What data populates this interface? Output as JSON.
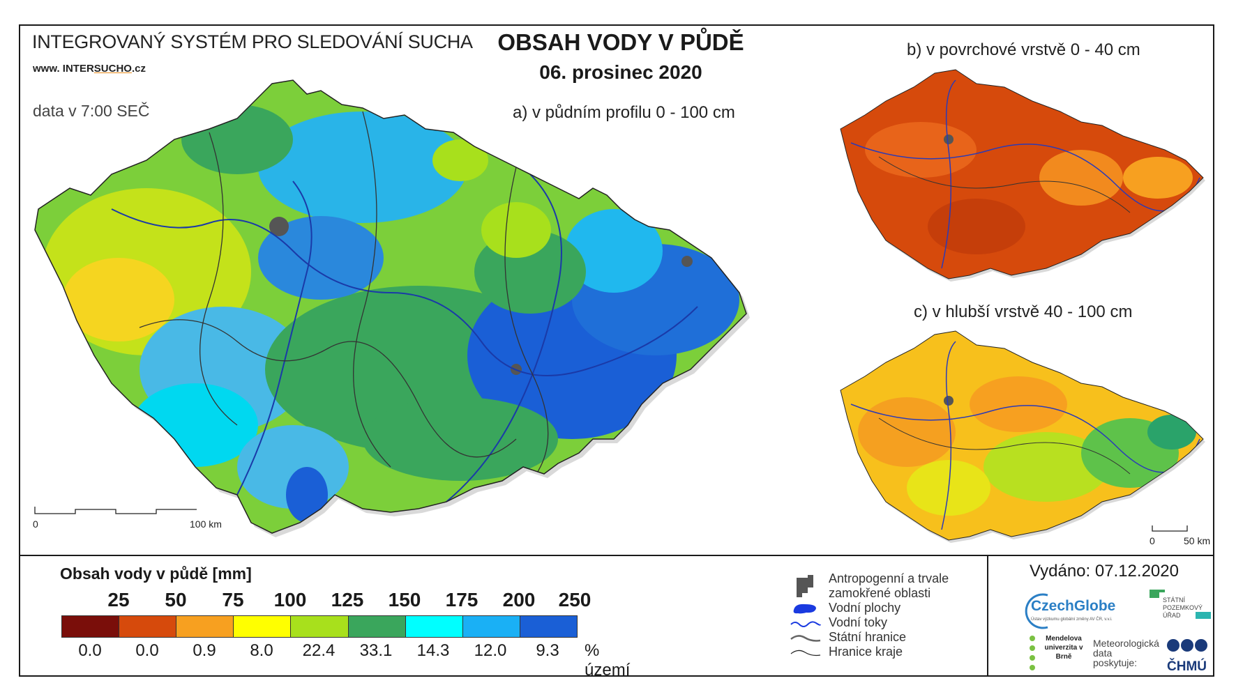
{
  "header": {
    "system_title": "INTEGROVANÝ SYSTÉM PRO SLEDOVÁNÍ SUCHA",
    "url_prefix": "www. INTER",
    "url_highlight": "SUCHO",
    "url_suffix": ".cz",
    "data_time": "data v 7:00 SEČ",
    "title": "OBSAH VODY V PŮDĚ",
    "date": "06. prosinec 2020"
  },
  "maps": {
    "a_label": "a) v půdním profilu 0 - 100 cm",
    "b_label": "b) v povrchové vrstvě 0 - 40 cm",
    "c_label": "c) v hlubší vrstvě 40 - 100 cm",
    "scale_main": [
      "0",
      "100 km"
    ],
    "scale_small": [
      "0",
      "50 km"
    ]
  },
  "legend": {
    "title": "Obsah vody v půdě  [mm]",
    "bounds": [
      "25",
      "50",
      "75",
      "100",
      "125",
      "150",
      "175",
      "200",
      "250"
    ],
    "colors": [
      "#7a0e0a",
      "#d64a0c",
      "#f7a020",
      "#ffff00",
      "#a8e01c",
      "#3aa65c",
      "#00ffff",
      "#1ab0f5",
      "#1a5fd6"
    ],
    "percentages": [
      "0.0",
      "0.0",
      "0.9",
      "8.0",
      "22.4",
      "33.1",
      "14.3",
      "12.0",
      "9.3"
    ],
    "percent_unit": "% území"
  },
  "features": {
    "anthropogenic_1": "Antropogenní a trvale",
    "anthropogenic_2": "zamokřené oblasti",
    "water_bodies": "Vodní plochy",
    "streams": "Vodní toky",
    "state_border": "Státní hranice",
    "region_border": "Hranice kraje"
  },
  "footer": {
    "issued": "Vydáno: 07.12.2020",
    "czechglobe": "CzechGlobe",
    "czechglobe_sub": "Ústav výzkumu globální změny AV ČR, v.v.i.",
    "spu": "STÁTNÍ POZEMKOVÝ ÚŘAD",
    "mendel": "Mendelova univerzita v Brně",
    "meteo": "Meteorologická data poskytuje:",
    "chmu": "ČHMÚ"
  }
}
